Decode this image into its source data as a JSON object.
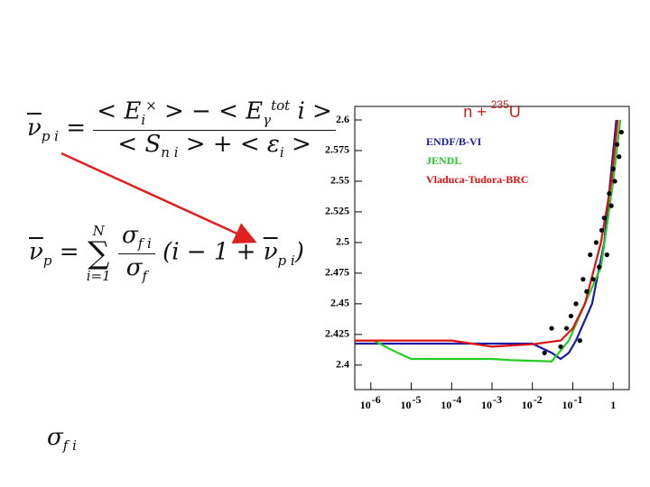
{
  "equations": {
    "eq1": [
      "ν",
      "p i",
      "=",
      "< E",
      "i",
      "×",
      "> − < E",
      "γ",
      "tot",
      "i >",
      "< S",
      "n i",
      "> + < ε",
      "i",
      ">"
    ],
    "eq2": [
      "ν",
      "p",
      "=",
      "N",
      "i=1",
      "σ",
      "f i",
      "σ",
      "f",
      "(i − 1 + ",
      "ν",
      "p i",
      ")"
    ],
    "eq3": [
      "σ",
      "f i"
    ]
  },
  "chart_data": {
    "type": "line",
    "log_x": true,
    "title": [
      "n + ",
      "235",
      "U"
    ],
    "xlim": [
      4e-07,
      2.5
    ],
    "ylim": [
      2.38,
      2.6
    ],
    "xticks": [
      {
        "value": 1e-06,
        "label": "10",
        "exponent": "-6"
      },
      {
        "value": 1e-05,
        "label": "10",
        "exponent": "-5"
      },
      {
        "value": 0.0001,
        "label": "10",
        "exponent": "-4"
      },
      {
        "value": 0.001,
        "label": "10",
        "exponent": "-3"
      },
      {
        "value": 0.01,
        "label": "10",
        "exponent": "-2"
      },
      {
        "value": 0.1,
        "label": "10",
        "exponent": "-1"
      },
      1
    ],
    "yticks": [
      2.4,
      2.425,
      2.45,
      2.475,
      2.5,
      2.525,
      2.55,
      2.575,
      2.6
    ],
    "series": [
      {
        "name": "ENDF/B-VI",
        "color": "#1a1aa8",
        "x": [
          4e-07,
          0.0001,
          0.01,
          0.03,
          0.05,
          0.08,
          0.12,
          0.3,
          0.6,
          1.2
        ],
        "values": [
          2.4175,
          2.4175,
          2.4175,
          2.41,
          2.405,
          2.41,
          2.42,
          2.45,
          2.5,
          2.6
        ]
      },
      {
        "name": "JENDL",
        "color": "#22cc22",
        "x": [
          4e-07,
          1.2e-06,
          3e-06,
          1e-05,
          0.001,
          0.003,
          0.03,
          0.08,
          0.2,
          0.5,
          1,
          1.5
        ],
        "values": [
          2.42,
          2.42,
          2.413,
          2.405,
          2.405,
          2.404,
          2.403,
          2.42,
          2.45,
          2.48,
          2.55,
          2.6
        ]
      },
      {
        "name": "Vladuca-Tudora-BRC",
        "color": "#e01010",
        "x": [
          4e-07,
          0.0001,
          0.001,
          0.01,
          0.05,
          0.1,
          0.2,
          0.5,
          0.9,
          1.3
        ],
        "values": [
          2.42,
          2.42,
          2.415,
          2.417,
          2.42,
          2.43,
          2.45,
          2.5,
          2.55,
          2.6
        ]
      }
    ],
    "points": {
      "color": "#000000",
      "x": [
        0.02,
        0.03,
        0.05,
        0.07,
        0.09,
        0.12,
        0.15,
        0.18,
        0.22,
        0.27,
        0.32,
        0.38,
        0.45,
        0.52,
        0.6,
        0.7,
        0.8,
        0.9,
        1.0,
        1.1,
        1.25,
        1.4,
        1.6
      ],
      "values": [
        2.41,
        2.43,
        2.415,
        2.43,
        2.44,
        2.45,
        2.42,
        2.47,
        2.46,
        2.49,
        2.47,
        2.5,
        2.48,
        2.51,
        2.52,
        2.49,
        2.54,
        2.53,
        2.56,
        2.55,
        2.58,
        2.57,
        2.59
      ]
    }
  }
}
